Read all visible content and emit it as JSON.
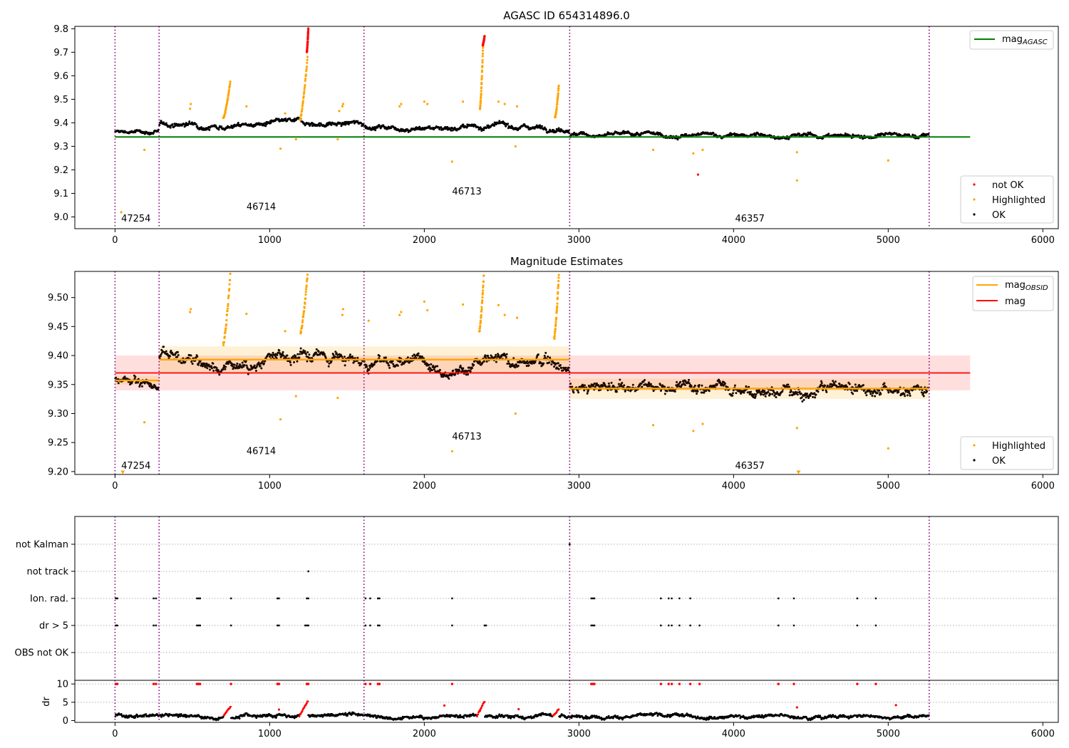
{
  "figure": {
    "background": "#ffffff"
  },
  "chart_data": [
    {
      "id": "top",
      "type": "scatter",
      "title": "AGASC ID 654314896.0",
      "xlim": [
        -260,
        6100
      ],
      "ylim": [
        8.95,
        9.81
      ],
      "xticks": [
        0,
        1000,
        2000,
        3000,
        4000,
        5000,
        6000
      ],
      "yticks": [
        9.0,
        9.1,
        9.2,
        9.3,
        9.4,
        9.5,
        9.6,
        9.7,
        9.8
      ],
      "ytick_labels": [
        "9.0",
        "9.1",
        "9.2",
        "9.3",
        "9.4",
        "9.5",
        "9.6",
        "9.7",
        "9.8"
      ],
      "obs_boundaries": [
        0,
        285,
        1610,
        2940,
        5265
      ],
      "obs_labels": [
        {
          "text": "47254",
          "x": 40,
          "y": 8.98
        },
        {
          "text": "46714",
          "x": 850,
          "y": 9.03
        },
        {
          "text": "46713",
          "x": 2180,
          "y": 9.095
        },
        {
          "text": "46357",
          "x": 4010,
          "y": 8.98
        }
      ],
      "reference_line": {
        "label": "mag",
        "label_sub": "AGASC",
        "value": 9.34,
        "x_range": [
          0,
          5530
        ],
        "color": "#008000"
      },
      "legend_lines": {
        "location": "upper right"
      },
      "legend_points": {
        "location": "lower right",
        "entries": [
          {
            "label": "not OK",
            "color": "#ff0000"
          },
          {
            "label": "Highlighted",
            "color": "#ffa500"
          },
          {
            "label": "OK",
            "color": "#000000"
          }
        ]
      },
      "segments": [
        {
          "x_start": 0,
          "x_end": 285,
          "level": 9.36,
          "noise": 0.01
        },
        {
          "x_start": 285,
          "x_end": 1610,
          "level": 9.395,
          "noise": 0.013
        },
        {
          "x_start": 1610,
          "x_end": 2940,
          "level": 9.385,
          "noise": 0.013
        },
        {
          "x_start": 2940,
          "x_end": 5265,
          "level": 9.345,
          "noise": 0.011
        }
      ],
      "flares": [
        {
          "x_start": 700,
          "x_end": 745,
          "y_start": 9.42,
          "y_end": 9.575,
          "color": "#ffa500"
        },
        {
          "x_start": 1195,
          "x_end": 1245,
          "y_start": 9.41,
          "y_end": 9.68,
          "color": "#ffa500"
        },
        {
          "x_start": 1240,
          "x_end": 1250,
          "y_start": 9.7,
          "y_end": 9.8,
          "color": "#ff0000"
        },
        {
          "x_start": 2360,
          "x_end": 2380,
          "y_start": 9.46,
          "y_end": 9.73,
          "color": "#ffa500"
        },
        {
          "x_start": 2378,
          "x_end": 2390,
          "y_start": 9.73,
          "y_end": 9.77,
          "color": "#ff0000"
        },
        {
          "x_start": 2845,
          "x_end": 2870,
          "y_start": 9.42,
          "y_end": 9.56,
          "color": "#ffa500"
        }
      ],
      "highlighted_points": [
        [
          40,
          9.02
        ],
        [
          190,
          9.285
        ],
        [
          485,
          9.46
        ],
        [
          490,
          9.48
        ],
        [
          850,
          9.47
        ],
        [
          1070,
          9.29
        ],
        [
          1100,
          9.44
        ],
        [
          1170,
          9.33
        ],
        [
          1440,
          9.33
        ],
        [
          1450,
          9.45
        ],
        [
          1470,
          9.47
        ],
        [
          1475,
          9.48
        ],
        [
          1840,
          9.47
        ],
        [
          1850,
          9.48
        ],
        [
          2000,
          9.49
        ],
        [
          2020,
          9.48
        ],
        [
          2180,
          9.235
        ],
        [
          2250,
          9.49
        ],
        [
          2480,
          9.49
        ],
        [
          2520,
          9.48
        ],
        [
          2590,
          9.3
        ],
        [
          2600,
          9.47
        ],
        [
          3480,
          9.285
        ],
        [
          3740,
          9.27
        ],
        [
          3800,
          9.285
        ],
        [
          4410,
          9.275
        ],
        [
          4410,
          9.155
        ],
        [
          5000,
          9.24
        ]
      ],
      "notok_points": [
        [
          3770,
          9.18
        ]
      ]
    },
    {
      "id": "middle",
      "type": "scatter",
      "title": "Magnitude Estimates",
      "xlim": [
        -260,
        6100
      ],
      "ylim": [
        9.195,
        9.545
      ],
      "xticks": [
        0,
        1000,
        2000,
        3000,
        4000,
        5000,
        6000
      ],
      "yticks": [
        9.2,
        9.25,
        9.3,
        9.35,
        9.4,
        9.45,
        9.5
      ],
      "ytick_labels": [
        "9.20",
        "9.25",
        "9.30",
        "9.35",
        "9.40",
        "9.45",
        "9.50"
      ],
      "obs_boundaries": [
        0,
        285,
        1610,
        2940,
        5265
      ],
      "obs_labels": [
        {
          "text": "47254",
          "x": 40,
          "y": 9.205
        },
        {
          "text": "46714",
          "x": 850,
          "y": 9.23
        },
        {
          "text": "46713",
          "x": 2180,
          "y": 9.255
        },
        {
          "text": "46357",
          "x": 4010,
          "y": 9.205
        }
      ],
      "mag_line": {
        "label": "mag",
        "value": 9.37,
        "band": [
          9.34,
          9.4
        ],
        "x_range": [
          0,
          5530
        ],
        "color": "#ff0000"
      },
      "obsid_lines": {
        "label": "mag",
        "label_sub": "OBSID",
        "color": "#ffa500",
        "levels": [
          {
            "x_start": 0,
            "x_end": 285,
            "value": 9.357,
            "band": [
              9.35,
              9.365
            ]
          },
          {
            "x_start": 285,
            "x_end": 2940,
            "value": 9.393,
            "band": [
              9.37,
              9.416
            ]
          },
          {
            "x_start": 2940,
            "x_end": 5265,
            "value": 9.343,
            "band": [
              9.325,
              9.36
            ]
          }
        ]
      },
      "legend_lines": {
        "location": "upper right"
      },
      "legend_points": {
        "location": "lower right",
        "entries": [
          {
            "label": "Highlighted",
            "color": "#ffa500"
          },
          {
            "label": "OK",
            "color": "#000000"
          }
        ]
      },
      "segments": [
        {
          "x_start": 0,
          "x_end": 285,
          "level": 9.36,
          "noise": 0.01
        },
        {
          "x_start": 285,
          "x_end": 1610,
          "level": 9.395,
          "noise": 0.013
        },
        {
          "x_start": 1610,
          "x_end": 2940,
          "level": 9.385,
          "noise": 0.013
        },
        {
          "x_start": 2940,
          "x_end": 5265,
          "level": 9.345,
          "noise": 0.012
        }
      ],
      "flares": [
        {
          "x_start": 700,
          "x_end": 745,
          "y_start": 9.42,
          "y_end": 9.54,
          "color": "#ffa500"
        },
        {
          "x_start": 1200,
          "x_end": 1245,
          "y_start": 9.44,
          "y_end": 9.54,
          "color": "#ffa500"
        },
        {
          "x_start": 2355,
          "x_end": 2385,
          "y_start": 9.44,
          "y_end": 9.54,
          "color": "#ffa500"
        },
        {
          "x_start": 2840,
          "x_end": 2870,
          "y_start": 9.43,
          "y_end": 9.54,
          "color": "#ffa500"
        }
      ],
      "highlighted_points": [
        [
          190,
          9.285
        ],
        [
          485,
          9.475
        ],
        [
          490,
          9.48
        ],
        [
          850,
          9.472
        ],
        [
          1070,
          9.29
        ],
        [
          1100,
          9.442
        ],
        [
          1170,
          9.33
        ],
        [
          1440,
          9.327
        ],
        [
          1470,
          9.47
        ],
        [
          1475,
          9.48
        ],
        [
          1640,
          9.46
        ],
        [
          1840,
          9.47
        ],
        [
          1850,
          9.475
        ],
        [
          2000,
          9.493
        ],
        [
          2020,
          9.478
        ],
        [
          2180,
          9.235
        ],
        [
          2250,
          9.488
        ],
        [
          2480,
          9.487
        ],
        [
          2520,
          9.47
        ],
        [
          2590,
          9.3
        ],
        [
          2600,
          9.465
        ],
        [
          3480,
          9.28
        ],
        [
          3740,
          9.27
        ],
        [
          3800,
          9.282
        ],
        [
          4410,
          9.275
        ],
        [
          5000,
          9.24
        ]
      ],
      "highlighted_triangles": [
        [
          50,
          9.198
        ],
        [
          4420,
          9.198
        ]
      ]
    },
    {
      "id": "flags",
      "type": "scatter",
      "xlim": [
        -260,
        6100
      ],
      "categories": [
        "not Kalman",
        "not track",
        "Ion. rad.",
        "dr > 5",
        "OBS not OK"
      ],
      "obs_boundaries": [
        0,
        285,
        1610,
        2940,
        5265
      ],
      "flag_points": {
        "not Kalman": [
          2940
        ],
        "not track": [
          1250
        ],
        "Ion. rad.": [
          5,
          15,
          250,
          265,
          530,
          540,
          550,
          750,
          1050,
          1060,
          1240,
          1250,
          1620,
          1650,
          1700,
          1710,
          2180,
          3080,
          3090,
          3100,
          3530,
          3580,
          3600,
          3650,
          3720,
          4290,
          4390,
          4800,
          4920
        ],
        "dr > 5": [
          5,
          15,
          250,
          265,
          530,
          540,
          550,
          750,
          1050,
          1060,
          1230,
          1240,
          1250,
          1620,
          1650,
          1700,
          1710,
          2180,
          2390,
          2400,
          3080,
          3090,
          3100,
          3530,
          3580,
          3600,
          3650,
          3720,
          3780,
          4290,
          4390,
          4800,
          4920
        ],
        "OBS not OK": []
      }
    },
    {
      "id": "dr",
      "type": "scatter",
      "ylabel": "dr",
      "xlim": [
        -260,
        6100
      ],
      "ylim": [
        -0.5,
        11
      ],
      "xticks": [
        0,
        1000,
        2000,
        3000,
        4000,
        5000,
        6000
      ],
      "yticks": [
        0,
        5,
        10
      ],
      "ytick_labels": [
        "0",
        "5",
        "10"
      ],
      "obs_boundaries": [
        0,
        285,
        1610,
        2940,
        5265
      ],
      "base_level": 1.2,
      "noise": 0.6,
      "clip_value": 10,
      "clipped_x": [
        5,
        15,
        250,
        265,
        530,
        540,
        550,
        750,
        1050,
        1060,
        1240,
        1250,
        1620,
        1650,
        1700,
        1710,
        2180,
        3080,
        3090,
        3100,
        3530,
        3580,
        3600,
        3650,
        3720,
        3780,
        4290,
        4390,
        4800,
        4920
      ],
      "bumps": [
        {
          "x_start": 700,
          "x_end": 750,
          "peak": 4
        },
        {
          "x_start": 1190,
          "x_end": 1250,
          "peak": 5.5
        },
        {
          "x_start": 2340,
          "x_end": 2390,
          "peak": 5.2
        },
        {
          "x_start": 2830,
          "x_end": 2870,
          "peak": 3
        }
      ],
      "red_points": [
        [
          2130,
          4.1
        ],
        [
          4410,
          3.6
        ],
        [
          5050,
          4.2
        ],
        [
          2610,
          3.1
        ],
        [
          1060,
          3.0
        ]
      ]
    }
  ]
}
